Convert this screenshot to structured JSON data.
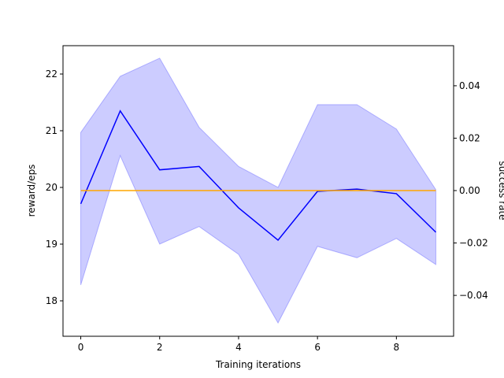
{
  "chart_data": {
    "type": "line",
    "xlabel": "Training iterations",
    "ylabel": "reward/eps",
    "y2label": "success rate",
    "ylabel_color": "#0000ff",
    "y2label_color": "#ffa500",
    "x": [
      0,
      1,
      2,
      3,
      4,
      5,
      6,
      7,
      8,
      9
    ],
    "series": [
      {
        "color": "#0000ff",
        "band_color": "#0000ff",
        "values": [
          19.71,
          21.35,
          20.31,
          20.37,
          19.64,
          19.07,
          19.93,
          19.97,
          19.89,
          19.21
        ],
        "upper": [
          20.97,
          21.96,
          22.28,
          21.06,
          20.37,
          20.0,
          21.46,
          21.46,
          21.03,
          19.96
        ],
        "lower": [
          18.28,
          20.56,
          19.0,
          19.31,
          18.82,
          17.61,
          18.96,
          18.76,
          19.1,
          18.64
        ]
      },
      {
        "color": "#ffa500",
        "axis": "y2",
        "values": [
          0,
          0,
          0,
          0,
          0,
          0,
          0,
          0,
          0,
          0
        ]
      }
    ],
    "xlim": [
      -0.45,
      9.45
    ],
    "xticks": [
      0,
      2,
      4,
      6,
      8
    ],
    "ylim": [
      17.375,
      22.5
    ],
    "yticks": [
      18,
      19,
      20,
      21,
      22
    ],
    "y2lim": [
      -0.0556,
      0.0553
    ],
    "y2ticks": [
      {
        "value": -0.04,
        "label": "−0.04"
      },
      {
        "value": -0.02,
        "label": "−0.02"
      },
      {
        "value": 0,
        "label": "0.00"
      },
      {
        "value": 0.02,
        "label": "0.02"
      },
      {
        "value": 0.04,
        "label": "0.04"
      }
    ]
  }
}
